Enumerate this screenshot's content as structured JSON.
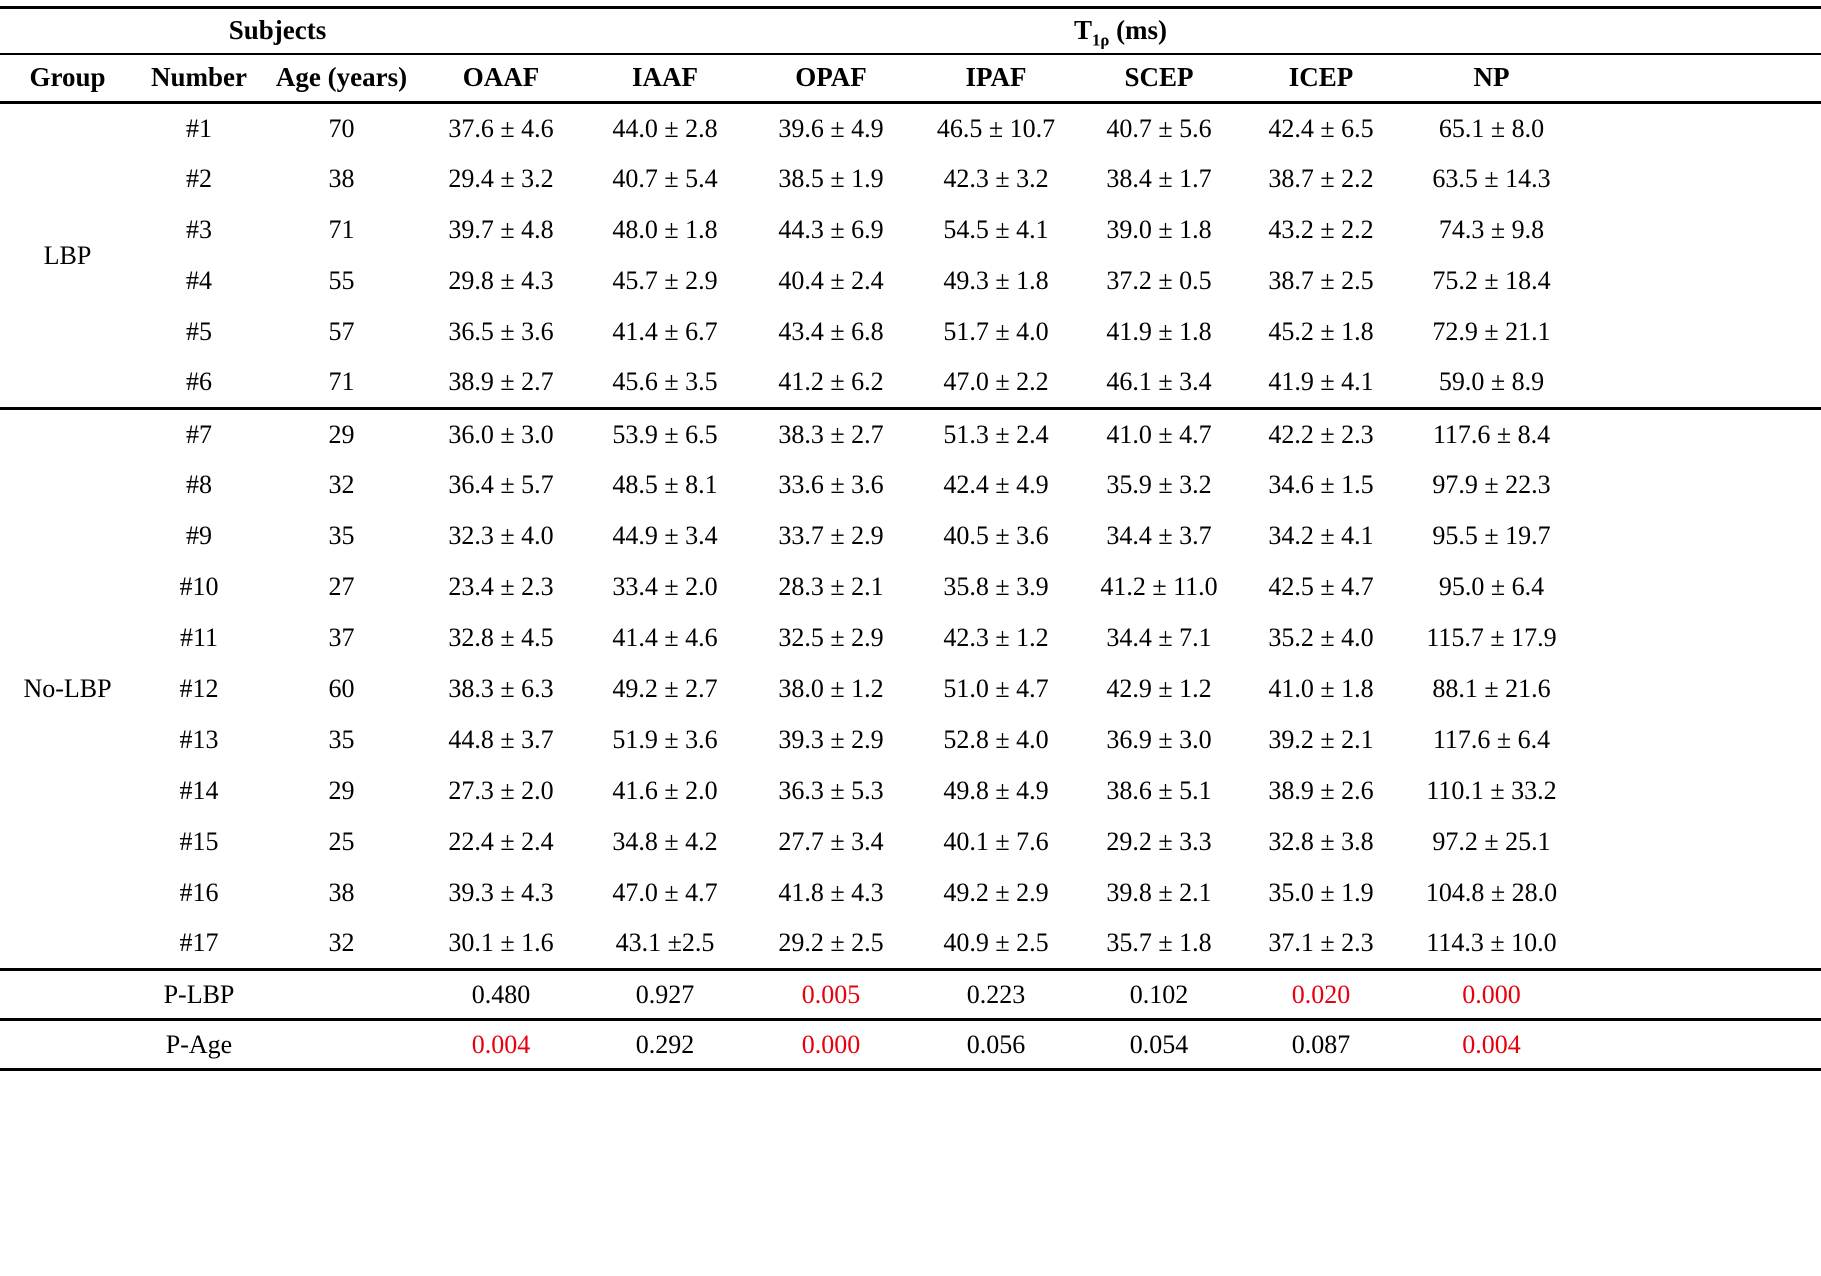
{
  "table": {
    "subjects_header": "Subjects",
    "t1_header": {
      "main": "T",
      "sub": "1ρ",
      "rest": " (ms)"
    },
    "columns": [
      "Group",
      "Number",
      "Age (years)",
      "OAAF",
      "IAAF",
      "OPAF",
      "IPAF",
      "SCEP",
      "ICEP",
      "NP"
    ],
    "groups": [
      {
        "label": "LBP",
        "rows": [
          {
            "number": "#1",
            "age": "70",
            "values": [
              "37.6 ± 4.6",
              "44.0 ± 2.8",
              "39.6 ± 4.9",
              "46.5 ± 10.7",
              "40.7 ± 5.6",
              "42.4 ± 6.5",
              "65.1 ± 8.0"
            ]
          },
          {
            "number": "#2",
            "age": "38",
            "values": [
              "29.4 ± 3.2",
              "40.7 ± 5.4",
              "38.5 ± 1.9",
              "42.3 ± 3.2",
              "38.4 ± 1.7",
              "38.7 ± 2.2",
              "63.5 ± 14.3"
            ]
          },
          {
            "number": "#3",
            "age": "71",
            "values": [
              "39.7 ± 4.8",
              "48.0 ± 1.8",
              "44.3 ± 6.9",
              "54.5 ± 4.1",
              "39.0 ± 1.8",
              "43.2 ± 2.2",
              "74.3 ± 9.8"
            ]
          },
          {
            "number": "#4",
            "age": "55",
            "values": [
              "29.8 ± 4.3",
              "45.7 ± 2.9",
              "40.4 ± 2.4",
              "49.3 ± 1.8",
              "37.2 ± 0.5",
              "38.7 ± 2.5",
              "75.2 ± 18.4"
            ]
          },
          {
            "number": "#5",
            "age": "57",
            "values": [
              "36.5 ± 3.6",
              "41.4 ± 6.7",
              "43.4 ± 6.8",
              "51.7 ± 4.0",
              "41.9 ± 1.8",
              "45.2 ± 1.8",
              "72.9 ± 21.1"
            ]
          },
          {
            "number": "#6",
            "age": "71",
            "values": [
              "38.9 ± 2.7",
              "45.6 ± 3.5",
              "41.2 ± 6.2",
              "47.0 ± 2.2",
              "46.1 ± 3.4",
              "41.9 ± 4.1",
              "59.0 ± 8.9"
            ]
          }
        ]
      },
      {
        "label": "No-LBP",
        "rows": [
          {
            "number": "#7",
            "age": "29",
            "values": [
              "36.0 ± 3.0",
              "53.9 ± 6.5",
              "38.3 ± 2.7",
              "51.3 ± 2.4",
              "41.0 ± 4.7",
              "42.2 ± 2.3",
              "117.6 ± 8.4"
            ]
          },
          {
            "number": "#8",
            "age": "32",
            "values": [
              "36.4 ± 5.7",
              "48.5 ± 8.1",
              "33.6 ± 3.6",
              "42.4 ± 4.9",
              "35.9 ± 3.2",
              "34.6 ± 1.5",
              "97.9 ± 22.3"
            ]
          },
          {
            "number": "#9",
            "age": "35",
            "values": [
              "32.3 ± 4.0",
              "44.9 ± 3.4",
              "33.7 ± 2.9",
              "40.5 ± 3.6",
              "34.4 ± 3.7",
              "34.2 ± 4.1",
              "95.5 ± 19.7"
            ]
          },
          {
            "number": "#10",
            "age": "27",
            "values": [
              "23.4 ± 2.3",
              "33.4 ± 2.0",
              "28.3 ± 2.1",
              "35.8 ± 3.9",
              "41.2 ± 11.0",
              "42.5 ± 4.7",
              "95.0 ± 6.4"
            ]
          },
          {
            "number": "#11",
            "age": "37",
            "values": [
              "32.8 ± 4.5",
              "41.4 ± 4.6",
              "32.5 ± 2.9",
              "42.3 ± 1.2",
              "34.4 ± 7.1",
              "35.2 ± 4.0",
              "115.7 ± 17.9"
            ]
          },
          {
            "number": "#12",
            "age": "60",
            "values": [
              "38.3 ± 6.3",
              "49.2 ± 2.7",
              "38.0 ± 1.2",
              "51.0 ± 4.7",
              "42.9 ± 1.2",
              "41.0 ± 1.8",
              "88.1 ± 21.6"
            ]
          },
          {
            "number": "#13",
            "age": "35",
            "values": [
              "44.8 ± 3.7",
              "51.9 ± 3.6",
              "39.3 ± 2.9",
              "52.8 ± 4.0",
              "36.9 ± 3.0",
              "39.2 ± 2.1",
              "117.6 ± 6.4"
            ]
          },
          {
            "number": "#14",
            "age": "29",
            "values": [
              "27.3 ± 2.0",
              "41.6 ± 2.0",
              "36.3 ± 5.3",
              "49.8 ± 4.9",
              "38.6 ± 5.1",
              "38.9 ± 2.6",
              "110.1 ± 33.2"
            ]
          },
          {
            "number": "#15",
            "age": "25",
            "values": [
              "22.4 ± 2.4",
              "34.8 ± 4.2",
              "27.7 ± 3.4",
              "40.1 ± 7.6",
              "29.2 ± 3.3",
              "32.8 ± 3.8",
              "97.2 ± 25.1"
            ]
          },
          {
            "number": "#16",
            "age": "38",
            "values": [
              "39.3 ± 4.3",
              "47.0 ± 4.7",
              "41.8 ± 4.3",
              "49.2 ± 2.9",
              "39.8 ± 2.1",
              "35.0 ± 1.9",
              "104.8 ± 28.0"
            ]
          },
          {
            "number": "#17",
            "age": "32",
            "values": [
              "30.1 ± 1.6",
              "43.1 ±2.5",
              "29.2 ± 2.5",
              "40.9 ± 2.5",
              "35.7 ± 1.8",
              "37.1 ± 2.3",
              "114.3 ± 10.0"
            ]
          }
        ]
      }
    ],
    "p_rows": [
      {
        "label": "P-LBP",
        "values": [
          {
            "text": "0.480",
            "red": false
          },
          {
            "text": "0.927",
            "red": false
          },
          {
            "text": "0.005",
            "red": true
          },
          {
            "text": "0.223",
            "red": false
          },
          {
            "text": "0.102",
            "red": false
          },
          {
            "text": "0.020",
            "red": true
          },
          {
            "text": "0.000",
            "red": true
          }
        ]
      },
      {
        "label": "P-Age",
        "values": [
          {
            "text": "0.004",
            "red": true
          },
          {
            "text": "0.292",
            "red": false
          },
          {
            "text": "0.000",
            "red": true
          },
          {
            "text": "0.056",
            "red": false
          },
          {
            "text": "0.054",
            "red": false
          },
          {
            "text": "0.087",
            "red": false
          },
          {
            "text": "0.004",
            "red": true
          }
        ]
      }
    ]
  },
  "colors": {
    "text": "#000000",
    "background": "#ffffff",
    "significant": "#e8000d"
  }
}
